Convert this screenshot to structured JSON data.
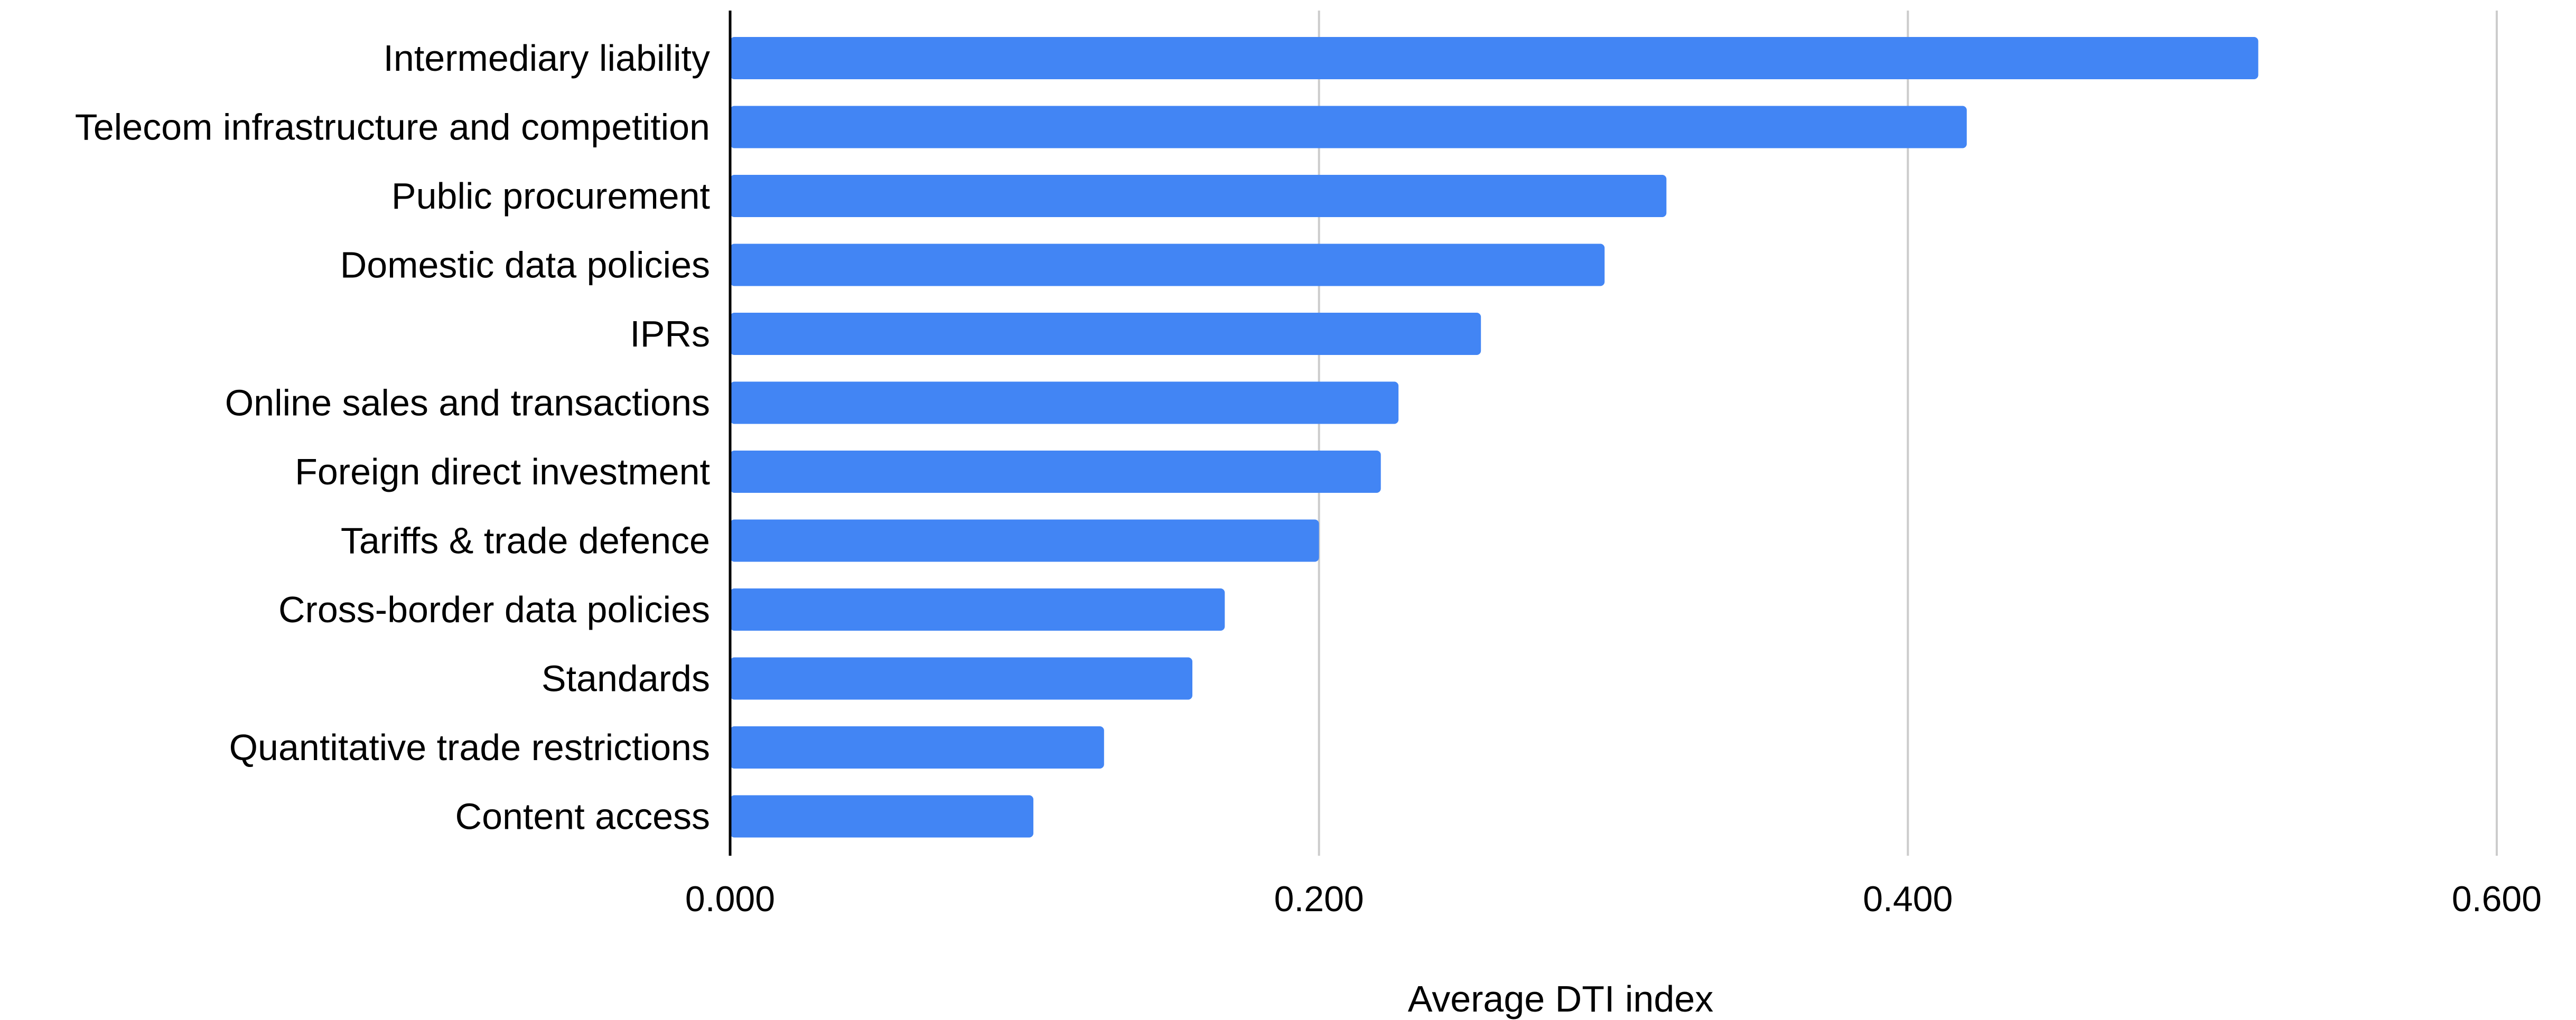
{
  "chart_data": {
    "type": "bar",
    "orientation": "horizontal",
    "categories": [
      "Intermediary liability",
      "Telecom infrastructure and competition",
      "Public procurement",
      "Domestic data policies",
      "IPRs",
      "Online sales and transactions",
      "Foreign direct investment",
      "Tariffs & trade defence",
      "Cross-border data policies",
      "Standards",
      "Quantitative trade restrictions",
      "Content access"
    ],
    "values": [
      0.519,
      0.42,
      0.318,
      0.297,
      0.255,
      0.227,
      0.221,
      0.2,
      0.168,
      0.157,
      0.127,
      0.103
    ],
    "title": "",
    "xlabel": "Average DTI index",
    "ylabel": "",
    "xlim": [
      0,
      0.6
    ],
    "xticks": [
      "0.000",
      "0.200",
      "0.400",
      "0.600"
    ],
    "grid": true,
    "legend": "none",
    "colors": {
      "bar": "#4285f4",
      "grid": "#cccccc",
      "axis": "#000000"
    }
  }
}
